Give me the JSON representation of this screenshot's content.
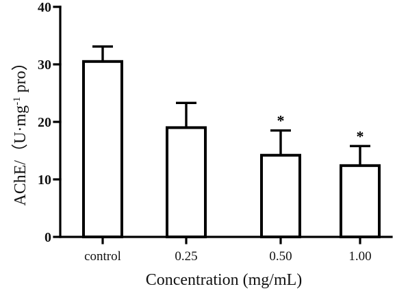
{
  "chart_data": {
    "type": "bar",
    "categories": [
      "control",
      "0.25",
      "0.50",
      "1.00"
    ],
    "values": [
      30.5,
      19.0,
      14.2,
      12.4
    ],
    "error_upper": [
      2.6,
      4.3,
      4.3,
      3.4
    ],
    "significance": [
      "",
      "",
      "*",
      "*"
    ],
    "xlabel": "Concentration (mg/mL)",
    "ylabel": {
      "main": "AChE/（U·mg",
      "sup": "-1",
      "tail": " pro）"
    },
    "ylim": [
      0,
      40
    ],
    "yticks": [
      "0",
      "10",
      "20",
      "30",
      "40"
    ],
    "grid": false,
    "legend": "none"
  }
}
